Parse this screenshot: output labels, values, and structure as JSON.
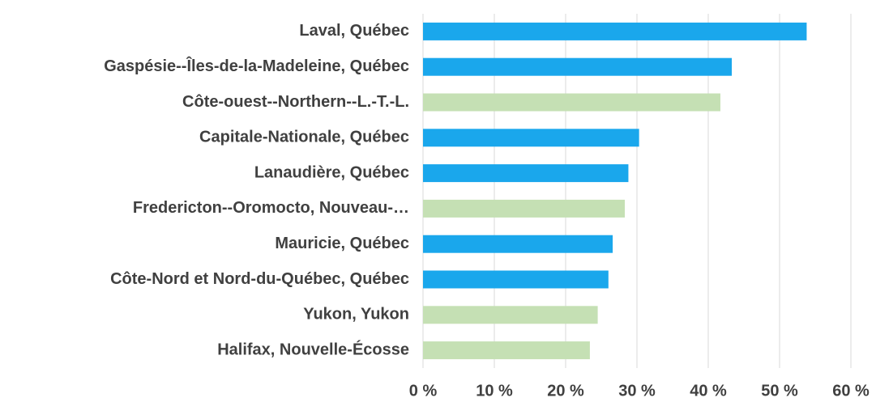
{
  "chart_data": {
    "type": "barh",
    "categories": [
      "Laval, Québec",
      "Gaspésie--Îles-de-la-Madeleine, Québec",
      "Côte-ouest--Northern--L.-T.-L.",
      "Capitale-Nationale, Québec",
      "Lanaudière, Québec",
      "Fredericton--Oromocto, Nouveau-…",
      "Mauricie, Québec",
      "Côte-Nord et Nord-du-Québec, Québec",
      "Yukon, Yukon",
      "Halifax, Nouvelle-Écosse"
    ],
    "values": [
      53.8,
      43.3,
      41.7,
      30.3,
      28.8,
      28.3,
      26.6,
      26.0,
      24.5,
      23.4
    ],
    "colors": [
      "#1aa7ec",
      "#1aa7ec",
      "#c5e0b4",
      "#1aa7ec",
      "#1aa7ec",
      "#c5e0b4",
      "#1aa7ec",
      "#1aa7ec",
      "#c5e0b4",
      "#c5e0b4"
    ],
    "xlim": [
      0,
      60
    ],
    "xticks": [
      {
        "value": 0,
        "label": "0 %"
      },
      {
        "value": 10,
        "label": "10 %"
      },
      {
        "value": 20,
        "label": "20 %"
      },
      {
        "value": 30,
        "label": "30 %"
      },
      {
        "value": 40,
        "label": "40 %"
      },
      {
        "value": 50,
        "label": "50 %"
      },
      {
        "value": 60,
        "label": "60 %"
      }
    ],
    "grid": true
  }
}
